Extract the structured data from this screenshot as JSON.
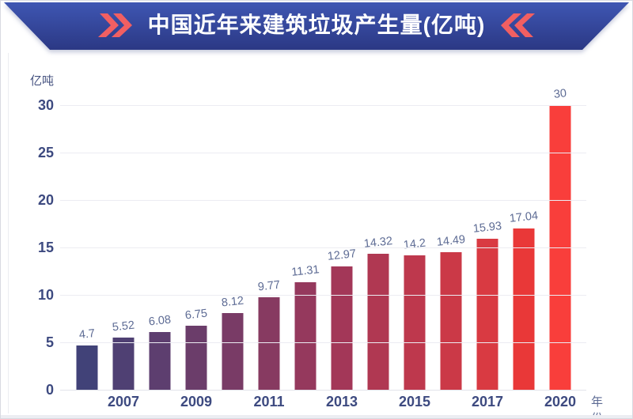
{
  "header": {
    "title": "中国近年来建筑垃圾产生量(亿吨)",
    "chevron_color": "#F15F62",
    "banner_gradient_top": "#3F57B4",
    "banner_gradient_bottom": "#2B3884",
    "title_color": "#FFFFFF"
  },
  "chart_data": {
    "type": "bar",
    "title": "中国近年来建筑垃圾产生量(亿吨)",
    "unit_label": "亿吨",
    "xlabel": "年份",
    "ylim": [
      0,
      30
    ],
    "y_ticks": [
      0,
      5,
      10,
      15,
      20,
      25,
      30
    ],
    "grid": true,
    "legend": "none",
    "values": [
      4.7,
      5.52,
      6.08,
      6.75,
      8.12,
      9.77,
      11.31,
      12.97,
      14.32,
      14.2,
      14.49,
      15.93,
      17.04,
      30
    ],
    "value_labels": [
      "4.7",
      "5.52",
      "6.08",
      "6.75",
      "8.12",
      "9.77",
      "11.31",
      "12.97",
      "14.32",
      "14.2",
      "14.49",
      "15.93",
      "17.04",
      "30"
    ],
    "x_tick_labels": [
      "",
      "2007",
      "",
      "2009",
      "",
      "2011",
      "",
      "2013",
      "",
      "2015",
      "",
      "2017",
      "",
      "2020"
    ],
    "bar_colors": [
      "#414278",
      "#4F4073",
      "#5D3E6F",
      "#6B3D6A",
      "#793B66",
      "#873A61",
      "#95395D",
      "#A33758",
      "#B03852",
      "#BE384D",
      "#CB3947",
      "#D93A42",
      "#E93838",
      "#F93E3B"
    ],
    "colors": {
      "axis_label": "#3D4A80",
      "value_label": "#5D6B94",
      "unit_label": "#44517F",
      "xaxis_title": "#5D6B94",
      "grid": "#ECECF2",
      "baseline": "#E2E3EA"
    }
  }
}
